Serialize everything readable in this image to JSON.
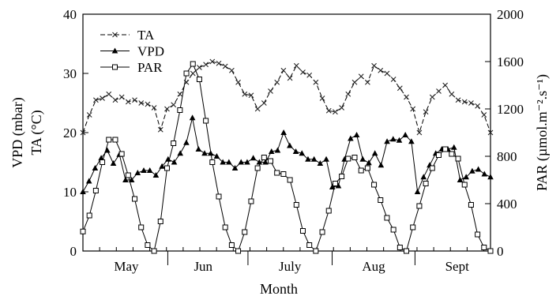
{
  "chart_data": {
    "type": "line",
    "xlabel": "Month",
    "ylabel_left_lines": [
      "VPD (mbar)",
      "TA (°C)"
    ],
    "ylabel_right": "PAR (µmol.m⁻².s⁻¹)",
    "x_range": [
      0,
      61
    ],
    "ylim_left": [
      0,
      40
    ],
    "ylim_right": [
      0,
      2000
    ],
    "x_month_labels": [
      {
        "label": "May",
        "x": 6.5
      },
      {
        "label": "Jun",
        "x": 18
      },
      {
        "label": "July",
        "x": 31
      },
      {
        "label": "Aug",
        "x": 43.5
      },
      {
        "label": "Sept",
        "x": 56
      }
    ],
    "x_minor_ticks": [
      2.5,
      5,
      7.5,
      10,
      12.5,
      15,
      17.5,
      20,
      22.5,
      25,
      27.5,
      30,
      32.5,
      35,
      37.5,
      40,
      42.5,
      45,
      47.5,
      50,
      52.5,
      55,
      57.5,
      60
    ],
    "x_month_separators": [
      12.7,
      24.7,
      37.3,
      49.7
    ],
    "yticks_left": [
      0,
      10,
      20,
      30,
      40
    ],
    "yticks_right": [
      0,
      400,
      800,
      1200,
      1600,
      2000
    ],
    "legend": {
      "position": "top-left"
    },
    "series": [
      {
        "name": "TA",
        "axis": "left",
        "marker": "x",
        "line": "dashed",
        "values": [
          20,
          23,
          25.5,
          25.8,
          26.5,
          25.5,
          26,
          25.2,
          25.5,
          25,
          24.8,
          24.2,
          20.5,
          24,
          24.7,
          26.5,
          28.5,
          30,
          31,
          31.5,
          32,
          31.7,
          31.2,
          30.5,
          28.5,
          26.5,
          26.3,
          24,
          25,
          27,
          28.5,
          30.5,
          29.2,
          31.3,
          30.2,
          29.7,
          28.5,
          25.8,
          23.7,
          23.5,
          24.2,
          26.5,
          28.5,
          29.5,
          28.5,
          31.3,
          30.5,
          30,
          29,
          27.5,
          26,
          24,
          20,
          23.5,
          26,
          27,
          28,
          26.5,
          25.5,
          25.2,
          25,
          24.5,
          23,
          20
        ]
      },
      {
        "name": "VPD",
        "axis": "left",
        "marker": "triangle",
        "line": "solid",
        "values": [
          10,
          11.8,
          14,
          15.7,
          17,
          14.8,
          16.3,
          12,
          12,
          13.2,
          13.6,
          13.6,
          12.8,
          14.3,
          15.5,
          15,
          16.5,
          18.3,
          22.5,
          17.2,
          16.5,
          16.5,
          16,
          15,
          15,
          14,
          15,
          15,
          15.7,
          15,
          15,
          16.8,
          17,
          20,
          17.8,
          16.8,
          16.5,
          15.5,
          15.5,
          14.8,
          15.5,
          10.8,
          11,
          15.5,
          19,
          19.6,
          15.5,
          14.9,
          16.5,
          14.5,
          18.5,
          18.9,
          18.7,
          19.6,
          18.5,
          10,
          12.5,
          14.5,
          16.5,
          17.2,
          17.2,
          17.5,
          12,
          12.5,
          13.5,
          13.8,
          13,
          12.5
        ]
      },
      {
        "name": "PAR",
        "axis": "right",
        "marker": "square",
        "line": "solid",
        "values": [
          165,
          300,
          510,
          750,
          940,
          940,
          820,
          640,
          440,
          200,
          50,
          0,
          250,
          700,
          910,
          1190,
          1500,
          1580,
          1450,
          1100,
          750,
          460,
          200,
          50,
          0,
          160,
          420,
          700,
          790,
          760,
          660,
          650,
          600,
          390,
          170,
          50,
          0,
          160,
          340,
          570,
          630,
          780,
          790,
          680,
          700,
          560,
          430,
          280,
          180,
          30,
          0,
          200,
          380,
          570,
          700,
          810,
          860,
          820,
          780,
          560,
          390,
          140,
          30,
          0
        ]
      }
    ]
  }
}
